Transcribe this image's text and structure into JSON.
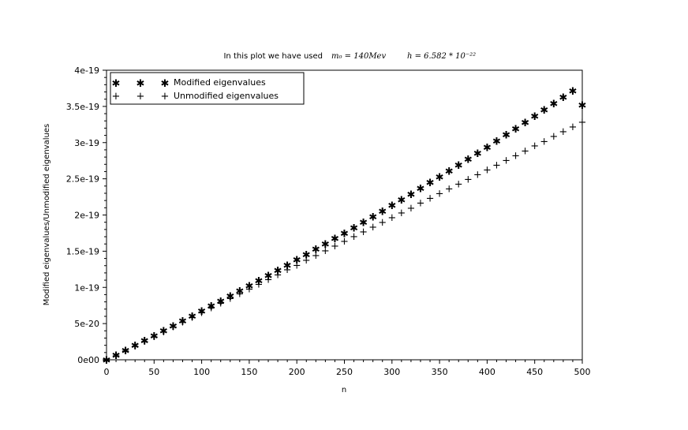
{
  "chart_data": {
    "type": "scatter",
    "title_text": "In this plot we have used",
    "title_math_1": "m₀ = 140Mev",
    "title_math_2": "h = 6.582 * 10⁻²²",
    "xlabel": "n",
    "ylabel": "Modified eigenvalues/Unmodified eigenvalues",
    "xlim": [
      0,
      500
    ],
    "ylim": [
      0,
      4e-19
    ],
    "x_ticks": [
      "0",
      "50",
      "100",
      "150",
      "200",
      "250",
      "300",
      "350",
      "400",
      "450",
      "500"
    ],
    "y_ticks": [
      "0e00",
      "5e-20",
      "1e-19",
      "1.5e-19",
      "2e-19",
      "2.5e-19",
      "3e-19",
      "3.5e-19",
      "4e-19"
    ],
    "grid": false,
    "legend_position": "top-left",
    "x": [
      0,
      10,
      20,
      30,
      40,
      50,
      60,
      70,
      80,
      90,
      100,
      110,
      120,
      130,
      140,
      150,
      160,
      170,
      180,
      190,
      200,
      210,
      220,
      230,
      240,
      250,
      260,
      270,
      280,
      290,
      300,
      310,
      320,
      330,
      340,
      350,
      360,
      370,
      380,
      390,
      400,
      410,
      420,
      430,
      440,
      450,
      460,
      470,
      480,
      490,
      500
    ],
    "series": [
      {
        "name": "Modified eigenvalues",
        "marker": "star",
        "values": [
          0,
          6.6e-21,
          1.33e-20,
          1.99e-20,
          2.66e-20,
          3.34e-20,
          4.01e-20,
          4.69e-20,
          5.37e-20,
          6.06e-20,
          6.74e-20,
          7.44e-20,
          8.13e-20,
          8.83e-20,
          9.53e-20,
          1.024e-19,
          1.095e-19,
          1.166e-19,
          1.238e-19,
          1.31e-19,
          1.383e-19,
          1.456e-19,
          1.529e-19,
          1.603e-19,
          1.677e-19,
          1.752e-19,
          1.828e-19,
          1.904e-19,
          1.98e-19,
          2.057e-19,
          2.134e-19,
          2.212e-19,
          2.291e-19,
          2.37e-19,
          2.45e-19,
          2.53e-19,
          2.611e-19,
          2.692e-19,
          2.774e-19,
          2.857e-19,
          2.94e-19,
          3.024e-19,
          3.109e-19,
          3.194e-19,
          3.28e-19,
          3.366e-19,
          3.453e-19,
          3.541e-19,
          3.629e-19,
          3.718e-19,
          3.52e-19
        ]
      },
      {
        "name": "Unmodified eigenvalues",
        "marker": "plus",
        "values": [
          0,
          6.6e-21,
          1.32e-20,
          1.98e-20,
          2.63e-20,
          3.29e-20,
          3.95e-20,
          4.61e-20,
          5.27e-20,
          5.93e-20,
          6.58e-20,
          7.24e-20,
          7.9e-20,
          8.56e-20,
          9.21e-20,
          9.87e-20,
          1.053e-19,
          1.119e-19,
          1.185e-19,
          1.251e-19,
          1.316e-19,
          1.382e-19,
          1.448e-19,
          1.514e-19,
          1.58e-19,
          1.646e-19,
          1.711e-19,
          1.777e-19,
          1.843e-19,
          1.909e-19,
          1.975e-19,
          2.04e-19,
          2.106e-19,
          2.172e-19,
          2.238e-19,
          2.304e-19,
          2.369e-19,
          2.435e-19,
          2.501e-19,
          2.567e-19,
          2.633e-19,
          2.698e-19,
          2.764e-19,
          2.83e-19,
          2.896e-19,
          2.962e-19,
          3.027e-19,
          3.093e-19,
          3.159e-19,
          3.225e-19,
          3.29e-19
        ]
      }
    ]
  }
}
